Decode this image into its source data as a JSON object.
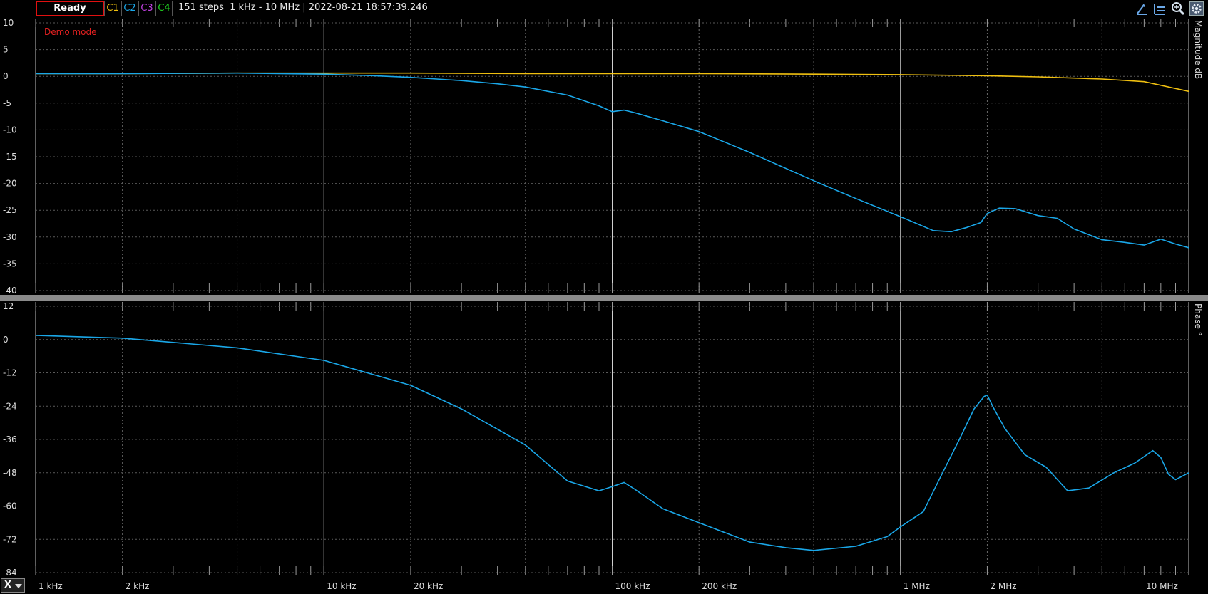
{
  "toolbar": {
    "status": "Ready",
    "channels": [
      {
        "label": "C1",
        "color": "#f0c010"
      },
      {
        "label": "C2",
        "color": "#1aa7e8"
      },
      {
        "label": "C3",
        "color": "#c040e0"
      },
      {
        "label": "C4",
        "color": "#20d020"
      }
    ],
    "sweep_info": "151 steps  1 kHz - 10 MHz | 2022-08-21 18:57:39.246",
    "icons": [
      "cursor-marker-icon",
      "horizontal-cursor-icon",
      "zoom-icon",
      "settings-icon"
    ]
  },
  "demo_label": "Demo mode",
  "x_selector": "X",
  "chart_data": [
    {
      "type": "line",
      "ylabel": "Magnitude  dB",
      "xscale": "log",
      "xlim": [
        1000,
        10000000
      ],
      "ylim": [
        -40,
        10
      ],
      "yticks": [
        10,
        5,
        0,
        -5,
        -10,
        -15,
        -20,
        -25,
        -30,
        -35,
        -40
      ],
      "grid": true,
      "series": [
        {
          "color": "#f0c010",
          "x": [
            1000,
            2000,
            5000,
            10000,
            20000,
            50000,
            100000,
            200000,
            500000,
            1000000,
            2000000,
            3000000,
            5000000,
            7000000,
            10000000
          ],
          "y": [
            0.5,
            0.5,
            0.6,
            0.6,
            0.6,
            0.5,
            0.5,
            0.5,
            0.4,
            0.3,
            0.1,
            -0.1,
            -0.5,
            -1.0,
            -2.8
          ]
        },
        {
          "color": "#1aa7e8",
          "x": [
            1000,
            2000,
            5000,
            10000,
            15000,
            20000,
            30000,
            40000,
            50000,
            70000,
            90000,
            100000,
            110000,
            120000,
            150000,
            200000,
            300000,
            500000,
            700000,
            1000000,
            1300000,
            1500000,
            1700000,
            1900000,
            2000000,
            2200000,
            2500000,
            3000000,
            3500000,
            4000000,
            5000000,
            6000000,
            7000000,
            8000000,
            9000000,
            10000000
          ],
          "y": [
            0.5,
            0.5,
            0.6,
            0.4,
            0.1,
            -0.2,
            -0.8,
            -1.4,
            -2.0,
            -3.5,
            -5.5,
            -6.6,
            -6.3,
            -6.8,
            -8.3,
            -10.3,
            -14.2,
            -19.5,
            -22.8,
            -26.2,
            -28.8,
            -29.0,
            -28.2,
            -27.3,
            -25.6,
            -24.6,
            -24.7,
            -26.0,
            -26.5,
            -28.5,
            -30.5,
            -31.0,
            -31.5,
            -30.4,
            -31.3,
            -32.0
          ]
        }
      ]
    },
    {
      "type": "line",
      "ylabel": "Phase  °",
      "xscale": "log",
      "xlim": [
        1000,
        10000000
      ],
      "ylim": [
        -84,
        12
      ],
      "yticks": [
        12,
        0,
        -12,
        -24,
        -36,
        -48,
        -60,
        -72,
        -84
      ],
      "xticks": [
        1000,
        2000,
        10000,
        20000,
        100000,
        200000,
        1000000,
        2000000,
        10000000
      ],
      "xticklabels": [
        "1 kHz",
        "2 kHz",
        "10 kHz",
        "20 kHz",
        "100 kHz",
        "200 kHz",
        "1 MHz",
        "2 MHz",
        "10 MHz"
      ],
      "grid": true,
      "series": [
        {
          "color": "#1aa7e8",
          "x": [
            1000,
            2000,
            5000,
            10000,
            20000,
            30000,
            50000,
            70000,
            90000,
            100000,
            110000,
            120000,
            150000,
            200000,
            300000,
            400000,
            500000,
            700000,
            900000,
            1000000,
            1200000,
            1400000,
            1600000,
            1800000,
            1950000,
            2000000,
            2100000,
            2300000,
            2700000,
            3200000,
            3800000,
            4500000,
            5500000,
            6500000,
            7500000,
            8000000,
            8500000,
            9000000,
            10000000
          ],
          "y": [
            1.5,
            0.5,
            -3.0,
            -7.5,
            -16.5,
            -25.0,
            -38.0,
            -51.0,
            -54.5,
            -53.0,
            -51.5,
            -54.0,
            -61.0,
            -66.0,
            -73.0,
            -75.0,
            -76.0,
            -74.5,
            -71.0,
            -67.5,
            -62.0,
            -48.0,
            -36.0,
            -25.0,
            -20.5,
            -20.0,
            -24.5,
            -32.0,
            -41.5,
            -46.0,
            -54.5,
            -53.5,
            -48.0,
            -44.5,
            -40.0,
            -42.5,
            -48.5,
            -50.5,
            -48.0
          ]
        }
      ]
    }
  ]
}
